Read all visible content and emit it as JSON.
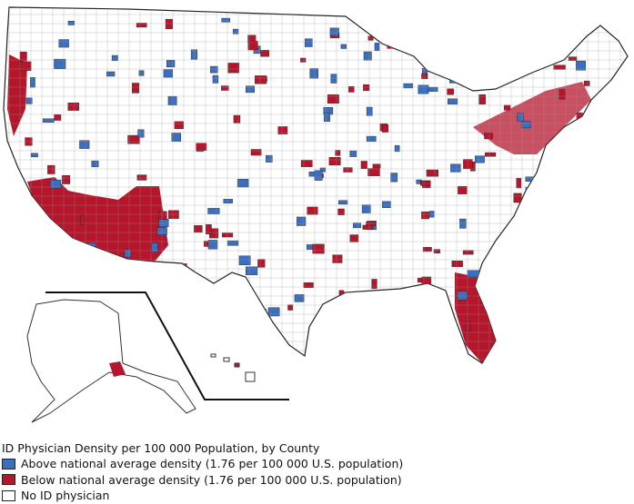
{
  "legend": {
    "title": "ID Physician Density per 100 000 Population, by County",
    "items": [
      {
        "label": "Above national average density (1.76 per 100 000 U.S. population)",
        "color": "#3a6fbf"
      },
      {
        "label": "Below national average density (1.76 per 100 000 U.S. population)",
        "color": "#b5162b"
      },
      {
        "label": "No ID physician",
        "color": "#ffffff"
      }
    ]
  }
}
